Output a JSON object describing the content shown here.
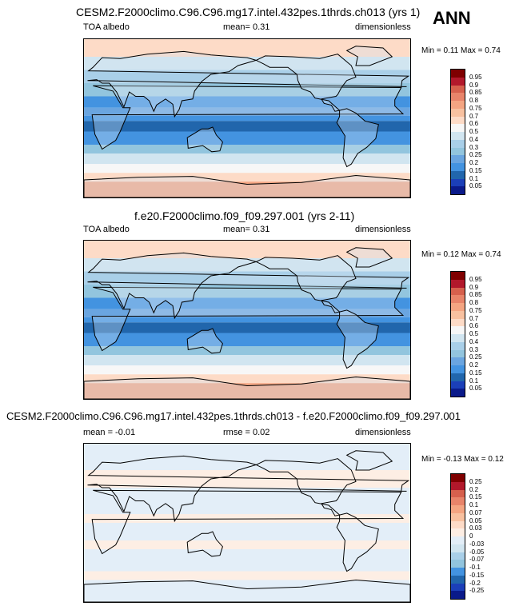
{
  "season": "ANN",
  "panels": [
    {
      "title": "CESM2.F2000climo.C96.C96.mg17.intel.432pes.1thrds.ch013 (yrs 1)",
      "left_label": "TOA albedo",
      "center_label": "mean=  0.31",
      "right_label": "dimensionless",
      "minmax": "Min =  0.11 Max =  0.74",
      "colorbar_labels": [
        "0.95",
        "0.9",
        "0.85",
        "0.8",
        "0.75",
        "0.7",
        "0.6",
        "0.5",
        "0.4",
        "0.3",
        "0.25",
        "0.2",
        "0.15",
        "0.1",
        "0.05"
      ],
      "colorbar_colors": [
        "#7f0000",
        "#b2182b",
        "#d6604d",
        "#e8846a",
        "#f4a582",
        "#f8c1a0",
        "#fddbc7",
        "#f7f7f7",
        "#d1e5f0",
        "#a9cfe8",
        "#92c5de",
        "#6aa5e0",
        "#4393e0",
        "#2166ac",
        "#1b3fb8",
        "#0a1a8a"
      ],
      "map_style": "albedo"
    },
    {
      "title": "f.e20.F2000climo.f09_f09.297.001 (yrs 2-11)",
      "left_label": "TOA albedo",
      "center_label": "mean=  0.31",
      "right_label": "dimensionless",
      "minmax": "Min =  0.12 Max =  0.74",
      "colorbar_labels": [
        "0.95",
        "0.9",
        "0.85",
        "0.8",
        "0.75",
        "0.7",
        "0.6",
        "0.5",
        "0.4",
        "0.3",
        "0.25",
        "0.2",
        "0.15",
        "0.1",
        "0.05"
      ],
      "colorbar_colors": [
        "#7f0000",
        "#b2182b",
        "#d6604d",
        "#e8846a",
        "#f4a582",
        "#f8c1a0",
        "#fddbc7",
        "#f7f7f7",
        "#d1e5f0",
        "#a9cfe8",
        "#92c5de",
        "#6aa5e0",
        "#4393e0",
        "#2166ac",
        "#1b3fb8",
        "#0a1a8a"
      ],
      "map_style": "albedo"
    },
    {
      "title": "CESM2.F2000climo.C96.C96.mg17.intel.432pes.1thrds.ch013 - f.e20.F2000climo.f09_f09.297.001",
      "left_label": "mean =  -0.01",
      "center_label": "rmse =  0.02",
      "right_label": "dimensionless",
      "minmax": "Min = -0.13 Max =  0.12",
      "colorbar_labels": [
        "0.25",
        "0.2",
        "0.15",
        "0.1",
        "0.07",
        "0.05",
        "0.03",
        "0",
        "-0.03",
        "-0.05",
        "-0.07",
        "-0.1",
        "-0.15",
        "-0.2",
        "-0.25"
      ],
      "colorbar_colors": [
        "#7f0000",
        "#b2182b",
        "#d6604d",
        "#e8846a",
        "#f4a582",
        "#f8c1a0",
        "#fddbc7",
        "#fdeee4",
        "#e3eef8",
        "#d1e5f0",
        "#a9cfe8",
        "#92c5de",
        "#4393e0",
        "#2166ac",
        "#1b3fb8",
        "#0a1a8a"
      ],
      "map_style": "diff"
    }
  ],
  "chart_data": [
    {
      "type": "heatmap",
      "title": "CESM2.F2000climo.C96.C96.mg17.intel.432pes.1thrds.ch013 (yrs 1)",
      "variable": "TOA albedo",
      "units": "dimensionless",
      "mean": 0.31,
      "min": 0.11,
      "max": 0.74,
      "contour_levels": [
        0.05,
        0.1,
        0.15,
        0.2,
        0.25,
        0.3,
        0.4,
        0.5,
        0.6,
        0.7,
        0.75,
        0.8,
        0.85,
        0.9,
        0.95
      ]
    },
    {
      "type": "heatmap",
      "title": "f.e20.F2000climo.f09_f09.297.001 (yrs 2-11)",
      "variable": "TOA albedo",
      "units": "dimensionless",
      "mean": 0.31,
      "min": 0.12,
      "max": 0.74,
      "contour_levels": [
        0.05,
        0.1,
        0.15,
        0.2,
        0.25,
        0.3,
        0.4,
        0.5,
        0.6,
        0.7,
        0.75,
        0.8,
        0.85,
        0.9,
        0.95
      ]
    },
    {
      "type": "heatmap",
      "title": "CESM2.F2000climo.C96.C96.mg17.intel.432pes.1thrds.ch013 - f.e20.F2000climo.f09_f09.297.001",
      "units": "dimensionless",
      "mean": -0.01,
      "rmse": 0.02,
      "min": -0.13,
      "max": 0.12,
      "contour_levels": [
        -0.25,
        -0.2,
        -0.15,
        -0.1,
        -0.07,
        -0.05,
        -0.03,
        0,
        0.03,
        0.05,
        0.07,
        0.1,
        0.15,
        0.2,
        0.25
      ]
    }
  ]
}
